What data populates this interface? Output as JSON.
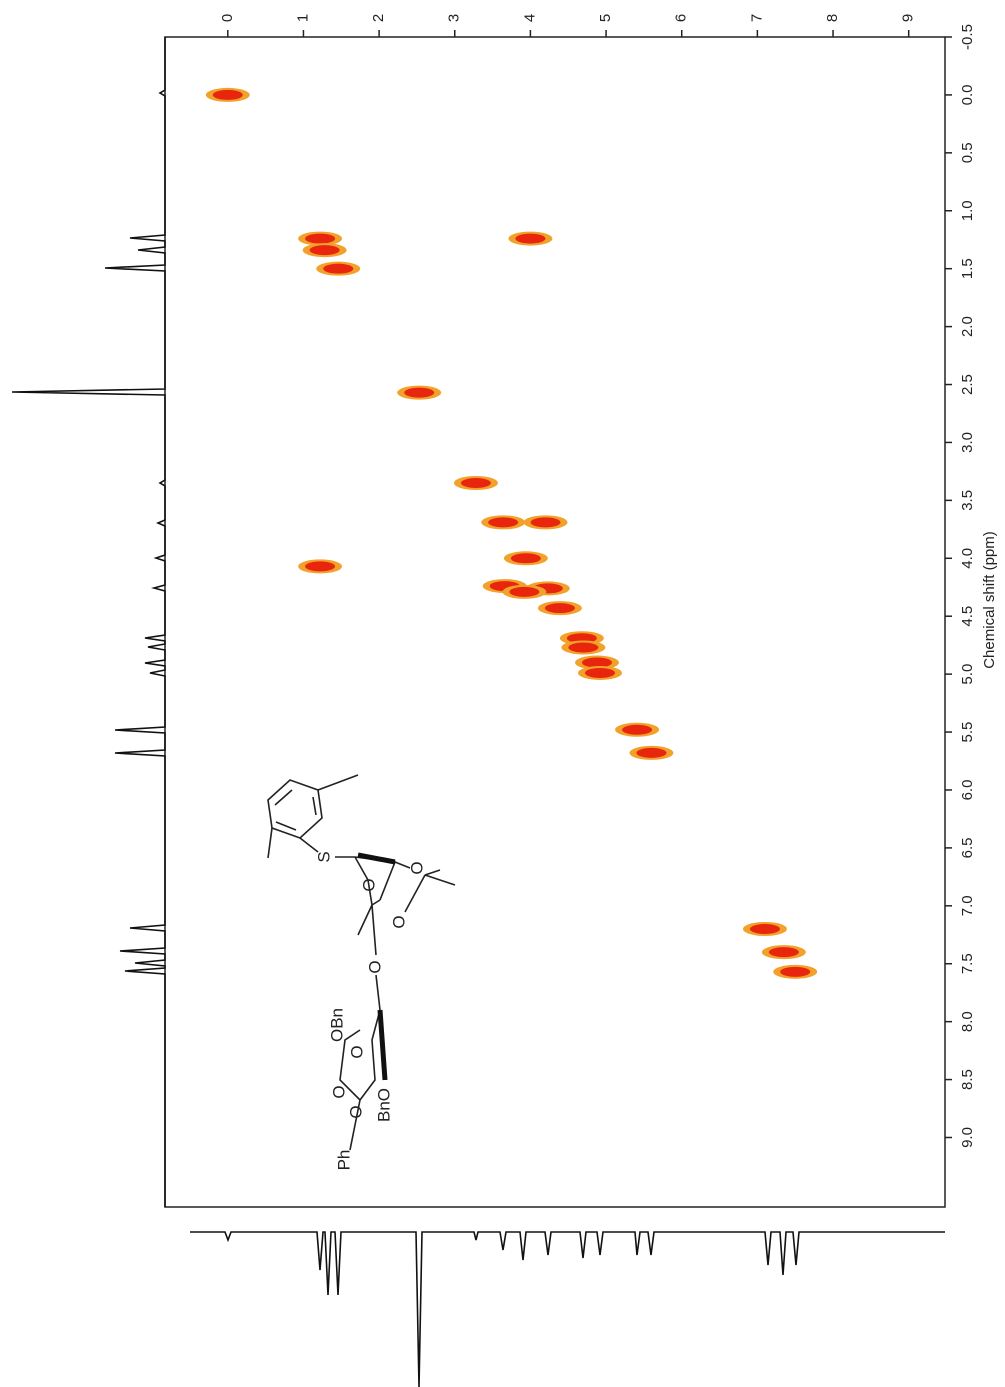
{
  "chart_data": {
    "type": "scatter",
    "y_axis_label": "Chemical shift (ppm)",
    "x": [
      0.0,
      1.22,
      1.28,
      1.46,
      4.0,
      2.53,
      3.28,
      3.64,
      4.2,
      3.94,
      3.66,
      4.23,
      3.92,
      4.39,
      4.68,
      4.7,
      4.88,
      4.92,
      5.41,
      5.6,
      7.1,
      7.35,
      7.5,
      1.22
    ],
    "values": [
      0.0,
      1.24,
      1.34,
      1.5,
      1.24,
      2.57,
      3.35,
      3.69,
      3.69,
      4.0,
      4.24,
      4.26,
      4.29,
      4.43,
      4.69,
      4.77,
      4.9,
      4.99,
      5.48,
      5.68,
      7.2,
      7.4,
      7.57,
      4.07
    ],
    "color": "#e8260e",
    "edge_color": "#f2a12a",
    "xlim": [
      -0.83,
      9.48
    ],
    "ylim": [
      -0.5,
      9.6
    ],
    "xticks": [
      0,
      1,
      2,
      3,
      4,
      5,
      6,
      7,
      8,
      9
    ],
    "yticks": [
      -0.5,
      {
        "value": 0,
        "label": "0.0"
      },
      0.5,
      {
        "value": 1,
        "label": "1.0"
      },
      1.5,
      {
        "value": 2,
        "label": "2.0"
      },
      2.5,
      {
        "value": 3,
        "label": "3.0"
      },
      3.5,
      {
        "value": 4,
        "label": "4.0"
      },
      4.5,
      {
        "value": 5,
        "label": "5.0"
      },
      5.5,
      {
        "value": 6,
        "label": "6.0"
      },
      6.5,
      {
        "value": 7,
        "label": "7.0"
      },
      7.5,
      {
        "value": 8,
        "label": "8.0"
      },
      8.5,
      {
        "value": 9,
        "label": "9.0"
      }
    ],
    "structure_labels": [
      "S",
      "O",
      "O",
      "O",
      "O",
      "OBn",
      "O",
      "O",
      "O",
      "BnO",
      "Ph"
    ]
  }
}
